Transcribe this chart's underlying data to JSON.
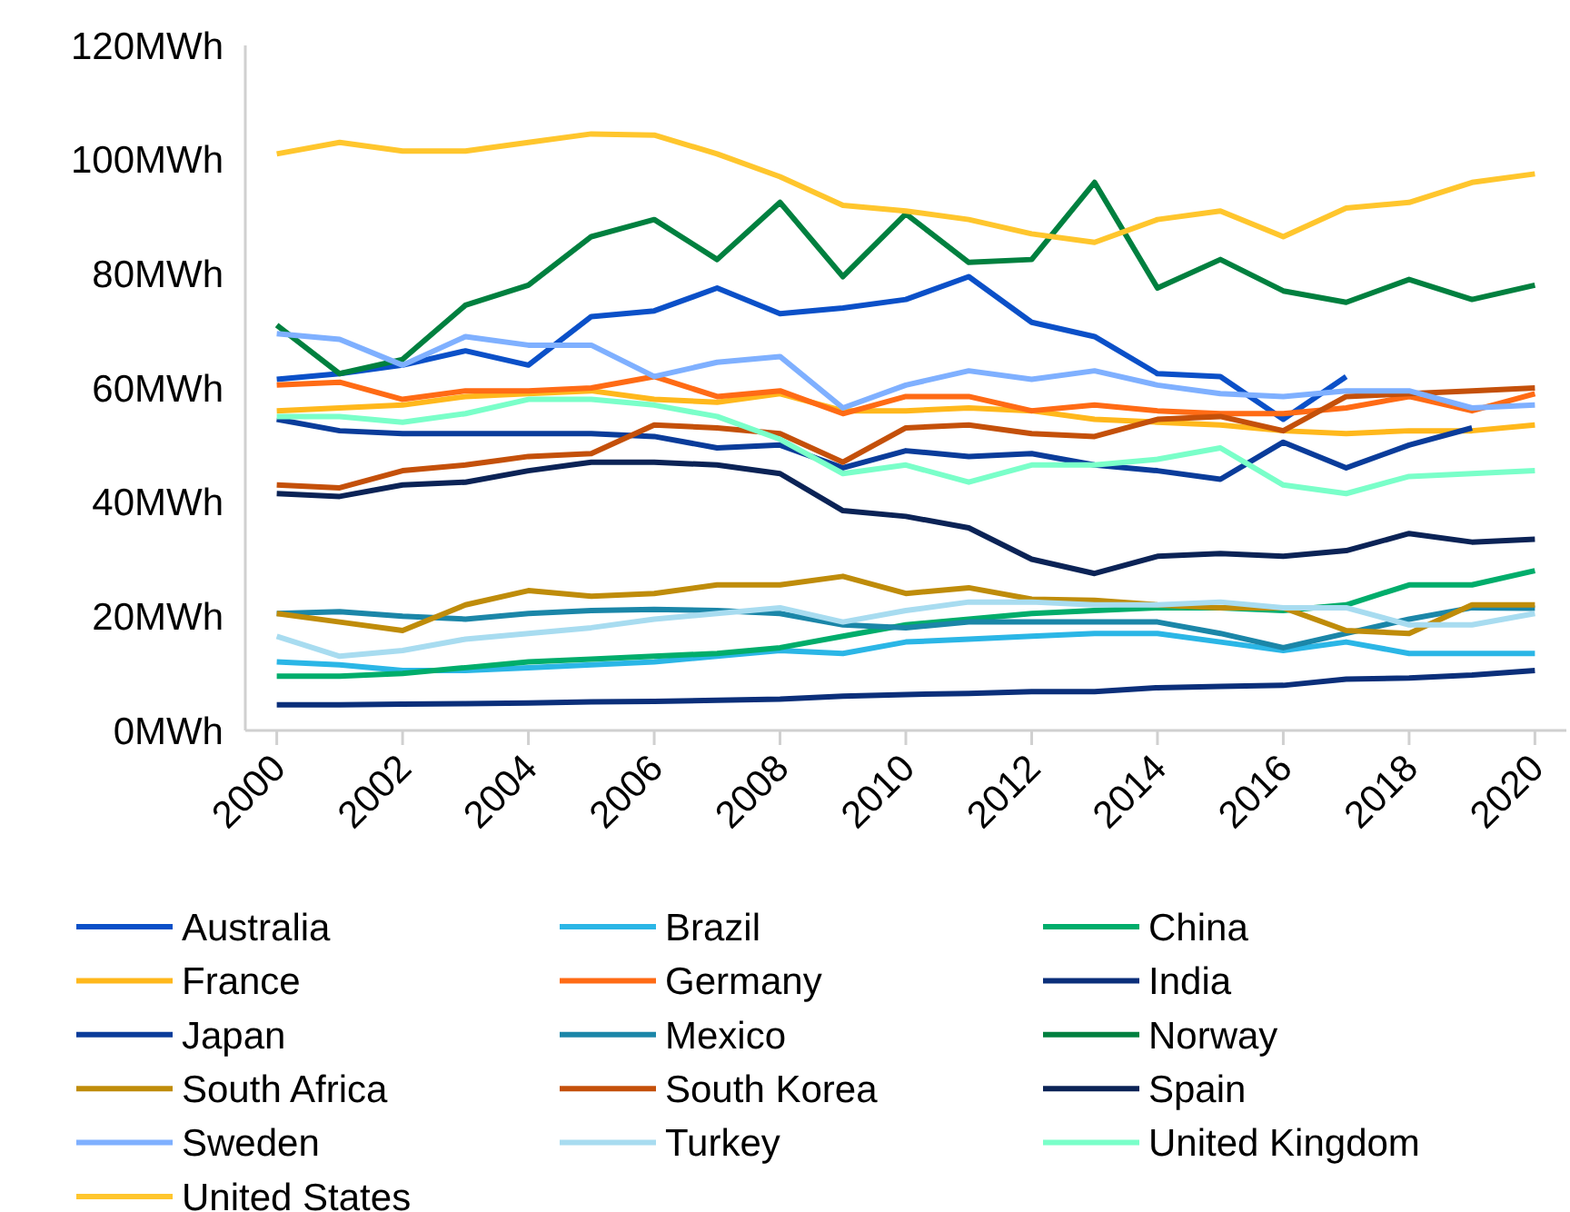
{
  "chart_data": {
    "type": "line",
    "x": [
      2000,
      2001,
      2002,
      2003,
      2004,
      2005,
      2006,
      2007,
      2008,
      2009,
      2010,
      2011,
      2012,
      2013,
      2014,
      2015,
      2016,
      2017,
      2018,
      2019,
      2020
    ],
    "xlim": [
      1999.5,
      2020.5
    ],
    "xticks": [
      2000,
      2002,
      2004,
      2006,
      2008,
      2010,
      2012,
      2014,
      2016,
      2018,
      2020
    ],
    "ylim": [
      0,
      120
    ],
    "yticks": [
      {
        "value": 0,
        "label": "0MWh"
      },
      {
        "value": 20,
        "label": "20MWh"
      },
      {
        "value": 40,
        "label": "40MWh"
      },
      {
        "value": 60,
        "label": "60MWh"
      },
      {
        "value": 80,
        "label": "80MWh"
      },
      {
        "value": 100,
        "label": "100MWh"
      },
      {
        "value": 120,
        "label": "120MWh"
      }
    ],
    "grid": false,
    "legend": "bottom",
    "marker": "none",
    "line_style": "solid",
    "series": [
      {
        "name": "Australia",
        "color": "#0b50c8",
        "values": [
          61.5,
          62.5,
          64,
          66.5,
          64,
          72.5,
          73.5,
          77.5,
          73,
          74,
          75.5,
          79.5,
          71.5,
          69,
          62.5,
          62,
          54.5,
          62,
          null,
          null,
          null
        ]
      },
      {
        "name": "Brazil",
        "color": "#2bb6e6",
        "values": [
          12,
          11.5,
          10.5,
          10.5,
          11,
          11.5,
          12,
          13,
          14,
          13.5,
          15.5,
          16,
          16.5,
          17,
          17,
          15.5,
          14,
          15.5,
          13.5,
          13.5,
          13.5
        ]
      },
      {
        "name": "China",
        "color": "#00ad6b",
        "values": [
          9.5,
          9.5,
          10,
          11,
          12,
          12.5,
          13,
          13.5,
          14.5,
          16.5,
          18.5,
          19.5,
          20.5,
          21,
          21.5,
          21.5,
          21,
          22,
          25.5,
          25.5,
          28
        ]
      },
      {
        "name": "France",
        "color": "#ffb81c",
        "values": [
          56,
          56.5,
          57,
          58.5,
          59,
          59.5,
          58,
          57.5,
          59,
          56,
          56,
          56.5,
          56,
          54.5,
          54,
          53.5,
          52.5,
          52,
          52.5,
          52.5,
          53.5
        ]
      },
      {
        "name": "Germany",
        "color": "#ff6b15",
        "values": [
          60.5,
          61,
          58,
          59.5,
          59.5,
          60,
          62,
          58.5,
          59.5,
          55.5,
          58.5,
          58.5,
          56,
          57,
          56,
          55.5,
          55.5,
          56.5,
          58.5,
          56,
          59
        ]
      },
      {
        "name": "India",
        "color": "#0b2f7a",
        "values": [
          4.5,
          4.5,
          4.6,
          4.7,
          4.8,
          5,
          5.1,
          5.3,
          5.5,
          6,
          6.3,
          6.5,
          6.8,
          6.8,
          7.5,
          7.7,
          7.9,
          9,
          9.2,
          9.7,
          10.5
        ]
      },
      {
        "name": "Japan",
        "color": "#0a3c9a",
        "values": [
          54.5,
          52.5,
          52,
          52,
          52,
          52,
          51.5,
          49.5,
          50,
          46,
          49,
          48,
          48.5,
          46.5,
          45.5,
          44,
          50.5,
          46,
          50,
          53,
          null
        ]
      },
      {
        "name": "Mexico",
        "color": "#1b86a8",
        "values": [
          20.5,
          20.8,
          20,
          19.5,
          20.5,
          21,
          21.2,
          21,
          20.5,
          18.5,
          18,
          19,
          19,
          19,
          19,
          17,
          14.5,
          17,
          19.5,
          21.5,
          21.4
        ]
      },
      {
        "name": "Norway",
        "color": "#00803f",
        "values": [
          71,
          62.5,
          65,
          74.5,
          78,
          86.5,
          89.5,
          82.5,
          92.5,
          79.5,
          90.5,
          82,
          82.5,
          96,
          77.5,
          82.5,
          77,
          75,
          79,
          75.5,
          78
        ]
      },
      {
        "name": "South Africa",
        "color": "#bf8c0a",
        "values": [
          20.5,
          19,
          17.5,
          22,
          24.5,
          23.5,
          24,
          25.5,
          25.5,
          27,
          24,
          25,
          23,
          22.8,
          22,
          21.5,
          21.5,
          17.5,
          17,
          22,
          22
        ]
      },
      {
        "name": "South Korea",
        "color": "#c4500a",
        "values": [
          43,
          42.5,
          45.5,
          46.5,
          48,
          48.5,
          53.5,
          53,
          52,
          47,
          53,
          53.5,
          52,
          51.5,
          54.5,
          55,
          52.5,
          58.5,
          59,
          59.5,
          60
        ]
      },
      {
        "name": "Spain",
        "color": "#0b2356",
        "values": [
          41.5,
          41,
          43,
          43.5,
          45.5,
          47,
          47,
          46.5,
          45,
          38.5,
          37.5,
          35.5,
          30,
          27.5,
          30.5,
          31,
          30.5,
          31.5,
          34.5,
          33,
          33.5
        ]
      },
      {
        "name": "Sweden",
        "color": "#7fb0ff",
        "values": [
          69.5,
          68.5,
          64,
          69,
          67.5,
          67.5,
          62,
          64.5,
          65.5,
          56.5,
          60.5,
          63,
          61.5,
          63,
          60.5,
          59,
          58.5,
          59.5,
          59.5,
          56.5,
          57
        ]
      },
      {
        "name": "Turkey",
        "color": "#a8dcf0",
        "values": [
          16.5,
          13,
          14,
          16,
          17,
          18,
          19.5,
          20.5,
          21.5,
          19,
          21,
          22.5,
          22.5,
          22,
          22,
          22.5,
          21.5,
          21.5,
          18.5,
          18.5,
          20.5
        ]
      },
      {
        "name": "United Kingdom",
        "color": "#7affc9",
        "values": [
          55,
          55,
          54,
          55.5,
          58,
          58,
          57,
          55,
          51,
          45,
          46.5,
          43.5,
          46.5,
          46.5,
          47.5,
          49.5,
          43,
          41.5,
          44.5,
          45,
          45.5
        ]
      },
      {
        "name": "United States",
        "color": "#ffc62d",
        "values": [
          101,
          103,
          101.5,
          101.5,
          103,
          104.5,
          104.3,
          101,
          97,
          92,
          91,
          89.5,
          87,
          85.5,
          89.5,
          91,
          86.5,
          91.5,
          92.5,
          96,
          97.5
        ]
      }
    ]
  }
}
